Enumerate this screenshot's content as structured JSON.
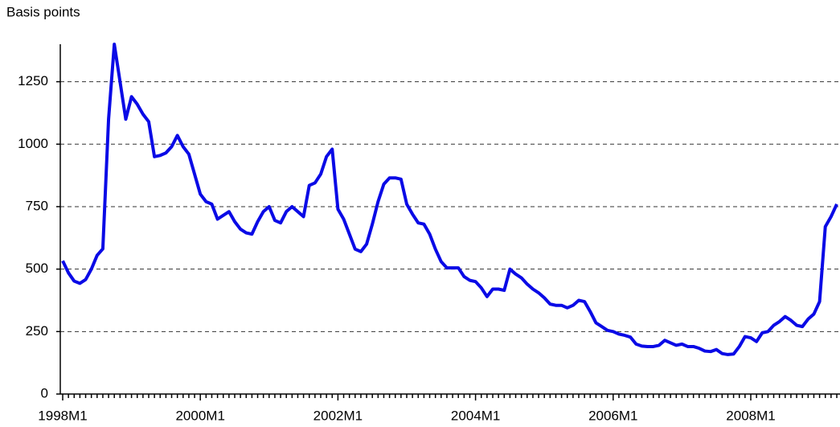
{
  "chart_data": {
    "type": "line",
    "y_label": "Basis points",
    "categories": [
      "1998M1",
      null,
      null,
      null,
      null,
      null,
      null,
      null,
      null,
      null,
      null,
      null,
      null,
      null,
      null,
      null,
      null,
      null,
      null,
      null,
      null,
      null,
      null,
      null,
      "2000M1",
      null,
      null,
      null,
      null,
      null,
      null,
      null,
      null,
      null,
      null,
      null,
      null,
      null,
      null,
      null,
      null,
      null,
      null,
      null,
      null,
      null,
      null,
      null,
      "2002M1",
      null,
      null,
      null,
      null,
      null,
      null,
      null,
      null,
      null,
      null,
      null,
      null,
      null,
      null,
      null,
      null,
      null,
      null,
      null,
      null,
      null,
      null,
      null,
      "2004M1",
      null,
      null,
      null,
      null,
      null,
      null,
      null,
      null,
      null,
      null,
      null,
      null,
      null,
      null,
      null,
      null,
      null,
      null,
      null,
      null,
      null,
      null,
      null,
      "2006M1",
      null,
      null,
      null,
      null,
      null,
      null,
      null,
      null,
      null,
      null,
      null,
      null,
      null,
      null,
      null,
      null,
      null,
      null,
      null,
      null,
      null,
      null,
      null,
      "2008M1",
      null,
      null,
      null,
      null,
      null,
      null,
      null,
      null,
      null,
      null,
      null,
      null,
      null,
      null,
      null
    ],
    "series": [
      {
        "color": "#0a0ae6",
        "values": [
          533,
          485,
          452,
          443,
          458,
          500,
          555,
          581,
          1100,
          1400,
          1250,
          1100,
          1190,
          1160,
          1120,
          1090,
          950,
          955,
          965,
          990,
          1035,
          990,
          960,
          880,
          800,
          770,
          760,
          700,
          715,
          730,
          690,
          660,
          645,
          640,
          690,
          730,
          750,
          695,
          685,
          730,
          750,
          730,
          710,
          835,
          845,
          880,
          950,
          980,
          740,
          700,
          640,
          580,
          570,
          600,
          680,
          770,
          840,
          865,
          865,
          860,
          760,
          720,
          685,
          680,
          640,
          580,
          530,
          505,
          505,
          505,
          470,
          455,
          450,
          425,
          390,
          420,
          420,
          415,
          500,
          480,
          465,
          440,
          420,
          405,
          385,
          360,
          355,
          355,
          345,
          355,
          375,
          370,
          330,
          285,
          270,
          255,
          250,
          240,
          235,
          228,
          200,
          192,
          190,
          190,
          195,
          215,
          205,
          195,
          200,
          190,
          190,
          183,
          172,
          170,
          178,
          162,
          158,
          160,
          190,
          230,
          225,
          210,
          245,
          250,
          275,
          290,
          310,
          295,
          275,
          270,
          300,
          320,
          370,
          670,
          710,
          760
        ]
      }
    ],
    "ylim": [
      0,
      1400
    ],
    "yticks": [
      0,
      250,
      500,
      750,
      1000,
      1250
    ],
    "grid": true
  }
}
